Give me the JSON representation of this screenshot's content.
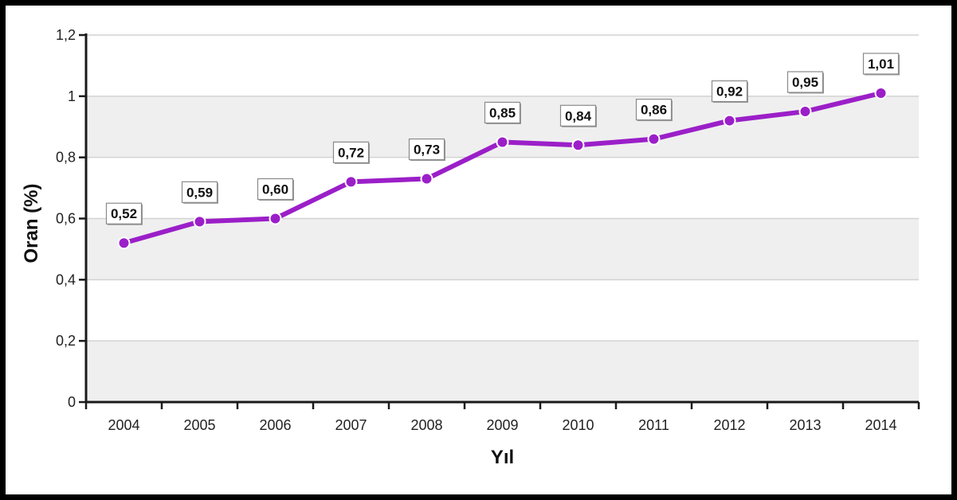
{
  "chart_data": {
    "type": "line",
    "title": "",
    "xlabel": "Yıl",
    "ylabel": "Oran (%)",
    "categories": [
      "2004",
      "2005",
      "2006",
      "2007",
      "2008",
      "2009",
      "2010",
      "2011",
      "2012",
      "2013",
      "2014"
    ],
    "series": [
      {
        "values": [
          0.52,
          0.59,
          0.6,
          0.72,
          0.73,
          0.85,
          0.84,
          0.86,
          0.92,
          0.95,
          1.01
        ],
        "data_labels": [
          "0,52",
          "0,59",
          "0,60",
          "0,72",
          "0,73",
          "0,85",
          "0,84",
          "0,86",
          "0,92",
          "0,95",
          "1,01"
        ],
        "color": "#9b1fc8"
      }
    ],
    "ylim": [
      0,
      1.2
    ],
    "yticks": [
      0,
      0.2,
      0.4,
      0.6,
      0.8,
      1.0,
      1.2
    ],
    "ytick_labels": [
      "0",
      "0,2",
      "0,4",
      "0,6",
      "0,8",
      "1",
      "1,2"
    ],
    "grid": true,
    "band_color": "#efefef",
    "grid_color": "#d2d2d2",
    "legend": "none"
  }
}
